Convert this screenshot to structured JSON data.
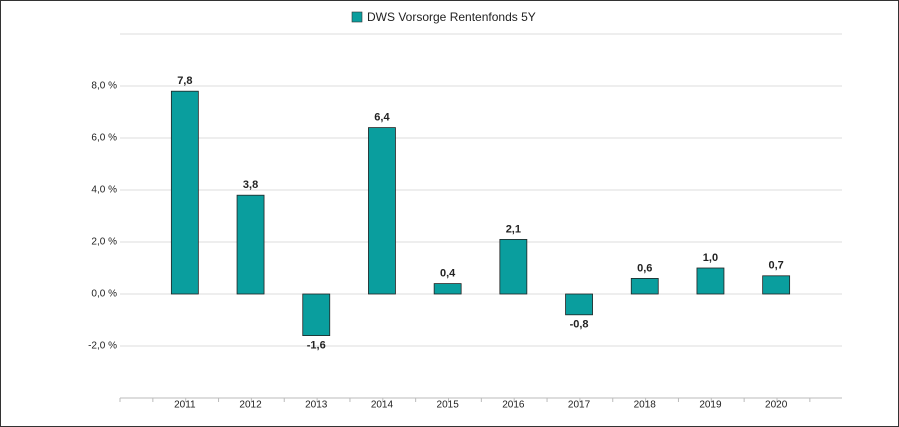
{
  "chart_data": {
    "type": "bar",
    "legend": "DWS Vorsorge Rentenfonds 5Y",
    "categories": [
      "2011",
      "2012",
      "2013",
      "2014",
      "2015",
      "2016",
      "2017",
      "2018",
      "2019",
      "2020"
    ],
    "values": [
      7.8,
      3.8,
      -1.6,
      6.4,
      0.4,
      2.1,
      -0.8,
      0.6,
      1.0,
      0.7
    ],
    "value_labels": [
      "7,8",
      "3,8",
      "-1,6",
      "6,4",
      "0,4",
      "2,1",
      "-0,8",
      "0,6",
      "1,0",
      "0,7"
    ],
    "color": "#0a9e9e",
    "ylim": [
      -4,
      10
    ],
    "yticks": [
      {
        "value": -2,
        "label": "-2,0 %"
      },
      {
        "value": 0,
        "label": "0,0 %"
      },
      {
        "value": 2,
        "label": "2,0 %"
      },
      {
        "value": 4,
        "label": "4,0 %"
      },
      {
        "value": 6,
        "label": "6,0 %"
      },
      {
        "value": 8,
        "label": "8,0 %"
      }
    ],
    "grid": true
  }
}
